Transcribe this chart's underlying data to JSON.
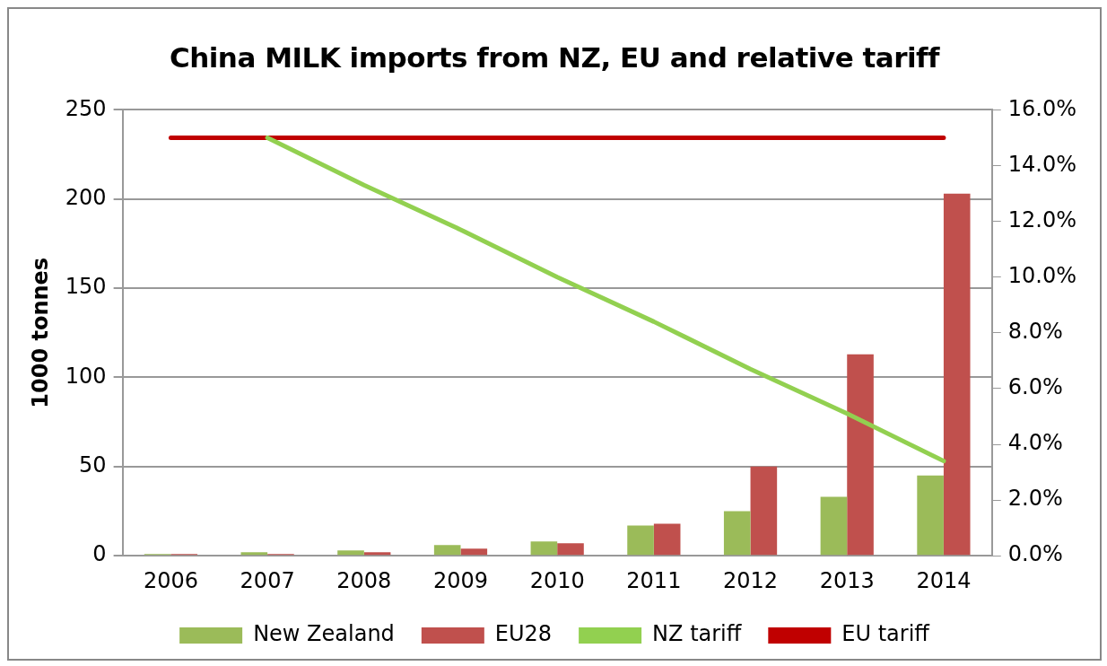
{
  "chart_data": {
    "type": "bar",
    "title": "China MILK imports from NZ, EU and relative tariff",
    "ylabel": "1000 tonnes",
    "categories": [
      "2006",
      "2007",
      "2008",
      "2009",
      "2010",
      "2011",
      "2012",
      "2013",
      "2014"
    ],
    "series": [
      {
        "name": "New Zealand",
        "color": "#9bbb59",
        "values": [
          1,
          2,
          3,
          6,
          8,
          17,
          25,
          33,
          45
        ]
      },
      {
        "name": "EU28",
        "color": "#c0504d",
        "values": [
          1,
          1,
          2,
          4,
          7,
          18,
          50,
          113,
          203
        ]
      },
      {
        "name": "NZ tariff",
        "type": "line",
        "axis": "y2",
        "color": "#92d050",
        "values": [
          null,
          15,
          13.3,
          11.7,
          10,
          8.4,
          6.7,
          5.1,
          3.4
        ]
      },
      {
        "name": "EU tariff",
        "type": "line",
        "axis": "y2",
        "color": "#c00000",
        "values": [
          15,
          15,
          15,
          15,
          15,
          15,
          15,
          15,
          15
        ]
      }
    ],
    "ylim": [
      0,
      250
    ],
    "yticks": [
      0,
      50,
      100,
      150,
      200,
      250
    ],
    "y2lim": [
      0,
      16
    ],
    "y2ticks": [
      {
        "value": 0,
        "label": "0.0%"
      },
      {
        "value": 2,
        "label": "2.0%"
      },
      {
        "value": 4,
        "label": "4.0%"
      },
      {
        "value": 6,
        "label": "6.0%"
      },
      {
        "value": 8,
        "label": "8.0%"
      },
      {
        "value": 10,
        "label": "10.0%"
      },
      {
        "value": 12,
        "label": "12.0%"
      },
      {
        "value": 14,
        "label": "14.0%"
      },
      {
        "value": 16,
        "label": "16.0%"
      }
    ],
    "grid": "y",
    "legend": "bottom",
    "marker": "none"
  }
}
